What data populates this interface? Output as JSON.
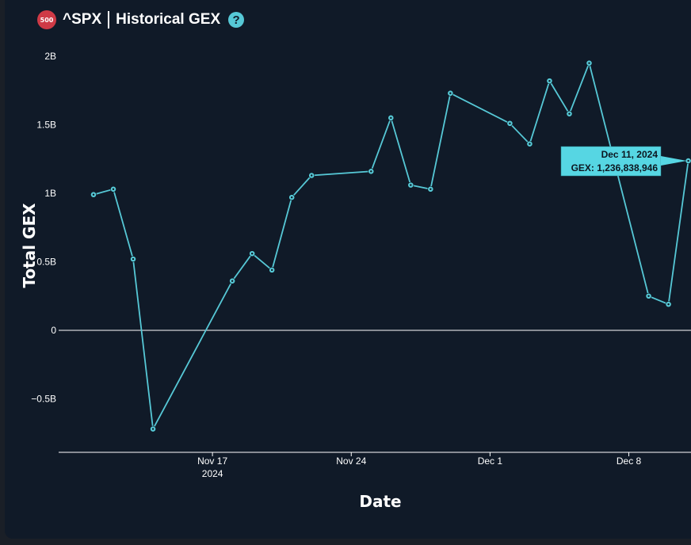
{
  "header": {
    "badge": "500",
    "ticker": "^SPX",
    "title": "Historical GEX",
    "help_icon": "question-circle-icon"
  },
  "colors": {
    "background": "#101a28",
    "line": "#56c8d6",
    "axis": "#ffffff",
    "badge": "#cf3a46",
    "tooltip": "#56d6e3"
  },
  "chart_data": {
    "type": "line",
    "title": "^SPX | Historical GEX",
    "xlabel": "Date",
    "ylabel": "Total GEX",
    "xlim": [
      "2024-11-09",
      "2024-12-11"
    ],
    "ylim": [
      -0.9,
      2.0
    ],
    "y_unit": "billions",
    "grid": false,
    "x_ticks": [
      {
        "date": "2024-11-17",
        "label": "Nov 17",
        "sublabel": "2024"
      },
      {
        "date": "2024-11-24",
        "label": "Nov 24",
        "sublabel": ""
      },
      {
        "date": "2024-12-01",
        "label": "Dec 1",
        "sublabel": ""
      },
      {
        "date": "2024-12-08",
        "label": "Dec 8",
        "sublabel": ""
      }
    ],
    "y_ticks": [
      {
        "value": 2.0,
        "label": "2B"
      },
      {
        "value": 1.5,
        "label": "1.5B"
      },
      {
        "value": 1.0,
        "label": "1B"
      },
      {
        "value": 0.5,
        "label": "0.5B"
      },
      {
        "value": 0,
        "label": "0"
      },
      {
        "value": -0.5,
        "label": "−0.5B"
      }
    ],
    "series": [
      {
        "points": [
          {
            "x": "2024-11-11",
            "y": 0.99
          },
          {
            "x": "2024-11-12",
            "y": 1.03
          },
          {
            "x": "2024-11-13",
            "y": 0.52
          },
          {
            "x": "2024-11-14",
            "y": -0.72
          },
          {
            "x": "2024-11-18",
            "y": 0.36
          },
          {
            "x": "2024-11-19",
            "y": 0.56
          },
          {
            "x": "2024-11-20",
            "y": 0.44
          },
          {
            "x": "2024-11-21",
            "y": 0.97
          },
          {
            "x": "2024-11-22",
            "y": 1.13
          },
          {
            "x": "2024-11-25",
            "y": 1.16
          },
          {
            "x": "2024-11-26",
            "y": 1.55
          },
          {
            "x": "2024-11-27",
            "y": 1.06
          },
          {
            "x": "2024-11-28",
            "y": 1.03
          },
          {
            "x": "2024-11-29",
            "y": 1.73
          },
          {
            "x": "2024-12-02",
            "y": 1.51
          },
          {
            "x": "2024-12-03",
            "y": 1.36
          },
          {
            "x": "2024-12-04",
            "y": 1.82
          },
          {
            "x": "2024-12-05",
            "y": 1.58
          },
          {
            "x": "2024-12-06",
            "y": 1.95
          },
          {
            "x": "2024-12-09",
            "y": 0.25
          },
          {
            "x": "2024-12-10",
            "y": 0.19
          },
          {
            "x": "2024-12-11",
            "y": 1.236838946
          }
        ]
      }
    ],
    "tooltip": {
      "date": "Dec 11, 2024",
      "text": "GEX: 1,236,838,946",
      "point_index": 21
    }
  }
}
